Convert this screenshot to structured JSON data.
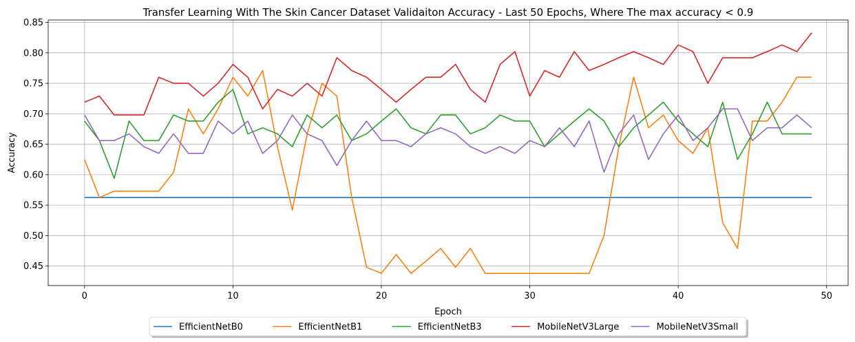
{
  "chart_data": {
    "type": "line",
    "title": "Transfer Learning With The Skin Cancer Dataset Validaiton Accuracy - Last 50 Epochs, Where The max accuracy < 0.9",
    "xlabel": "Epoch",
    "ylabel": "Accuracy",
    "xlim": [
      -2.45,
      51.45
    ],
    "ylim": [
      0.418,
      0.854
    ],
    "x_ticks": [
      0,
      10,
      20,
      30,
      40,
      50
    ],
    "y_ticks": [
      0.45,
      0.5,
      0.55,
      0.6,
      0.65,
      0.7,
      0.75,
      0.8,
      0.85
    ],
    "y_tick_labels": [
      "0.45",
      "0.50",
      "0.55",
      "0.60",
      "0.65",
      "0.70",
      "0.75",
      "0.80",
      "0.85"
    ],
    "grid": true,
    "legend_position": "bottom-center",
    "x": [
      0,
      1,
      2,
      3,
      4,
      5,
      6,
      7,
      8,
      9,
      10,
      11,
      12,
      13,
      14,
      15,
      16,
      17,
      18,
      19,
      20,
      21,
      22,
      23,
      24,
      25,
      26,
      27,
      28,
      29,
      30,
      31,
      32,
      33,
      34,
      35,
      36,
      37,
      38,
      39,
      40,
      41,
      42,
      43,
      44,
      45,
      46,
      47,
      48,
      49
    ],
    "series": [
      {
        "name": "EfficientNetB0",
        "color": "#1f77b4",
        "values": [
          0.5625,
          0.5625,
          0.5625,
          0.5625,
          0.5625,
          0.5625,
          0.5625,
          0.5625,
          0.5625,
          0.5625,
          0.5625,
          0.5625,
          0.5625,
          0.5625,
          0.5625,
          0.5625,
          0.5625,
          0.5625,
          0.5625,
          0.5625,
          0.5625,
          0.5625,
          0.5625,
          0.5625,
          0.5625,
          0.5625,
          0.5625,
          0.5625,
          0.5625,
          0.5625,
          0.5625,
          0.5625,
          0.5625,
          0.5625,
          0.5625,
          0.5625,
          0.5625,
          0.5625,
          0.5625,
          0.5625,
          0.5625,
          0.5625,
          0.5625,
          0.5625,
          0.5625,
          0.5625,
          0.5625,
          0.5625,
          0.5625,
          0.5625
        ]
      },
      {
        "name": "EfficientNetB1",
        "color": "#ff7f0e",
        "values": [
          0.625,
          0.5625,
          0.573,
          0.573,
          0.573,
          0.573,
          0.604,
          0.708,
          0.667,
          0.708,
          0.76,
          0.729,
          0.771,
          0.646,
          0.542,
          0.667,
          0.75,
          0.729,
          0.563,
          0.448,
          0.438,
          0.469,
          0.438,
          0.458,
          0.479,
          0.448,
          0.479,
          0.438,
          0.438,
          0.438,
          0.438,
          0.438,
          0.438,
          0.438,
          0.438,
          0.5,
          0.646,
          0.76,
          0.677,
          0.698,
          0.656,
          0.635,
          0.677,
          0.521,
          0.479,
          0.688,
          0.688,
          0.719,
          0.76,
          0.76
        ]
      },
      {
        "name": "EfficientNetB3",
        "color": "#2ca02c",
        "values": [
          0.688,
          0.656,
          0.594,
          0.688,
          0.656,
          0.656,
          0.698,
          0.688,
          0.688,
          0.719,
          0.74,
          0.667,
          0.677,
          0.667,
          0.646,
          0.698,
          0.677,
          0.698,
          0.656,
          0.667,
          0.688,
          0.708,
          0.677,
          0.667,
          0.698,
          0.698,
          0.667,
          0.677,
          0.698,
          0.688,
          0.688,
          0.646,
          0.667,
          0.688,
          0.708,
          0.688,
          0.646,
          0.677,
          0.698,
          0.719,
          0.688,
          0.667,
          0.646,
          0.719,
          0.625,
          0.667,
          0.719,
          0.667,
          0.667,
          0.667
        ]
      },
      {
        "name": "MobileNetV3Large",
        "color": "#d62728",
        "values": [
          0.719,
          0.729,
          0.698,
          0.698,
          0.698,
          0.76,
          0.75,
          0.75,
          0.729,
          0.75,
          0.781,
          0.76,
          0.708,
          0.74,
          0.729,
          0.75,
          0.729,
          0.792,
          0.771,
          0.76,
          0.74,
          0.719,
          0.74,
          0.76,
          0.76,
          0.781,
          0.74,
          0.719,
          0.781,
          0.802,
          0.729,
          0.771,
          0.76,
          0.802,
          0.771,
          0.781,
          0.792,
          0.802,
          0.792,
          0.781,
          0.813,
          0.802,
          0.75,
          0.792,
          0.792,
          0.792,
          0.802,
          0.813,
          0.802,
          0.833
        ]
      },
      {
        "name": "MobileNetV3Small",
        "color": "#9467bd",
        "values": [
          0.698,
          0.656,
          0.656,
          0.667,
          0.646,
          0.635,
          0.667,
          0.635,
          0.635,
          0.688,
          0.667,
          0.688,
          0.635,
          0.656,
          0.698,
          0.667,
          0.656,
          0.615,
          0.656,
          0.688,
          0.656,
          0.656,
          0.646,
          0.667,
          0.677,
          0.667,
          0.646,
          0.635,
          0.646,
          0.635,
          0.656,
          0.646,
          0.677,
          0.646,
          0.688,
          0.604,
          0.667,
          0.698,
          0.625,
          0.667,
          0.698,
          0.656,
          0.677,
          0.708,
          0.708,
          0.656,
          0.677,
          0.677,
          0.698,
          0.677
        ]
      }
    ]
  }
}
